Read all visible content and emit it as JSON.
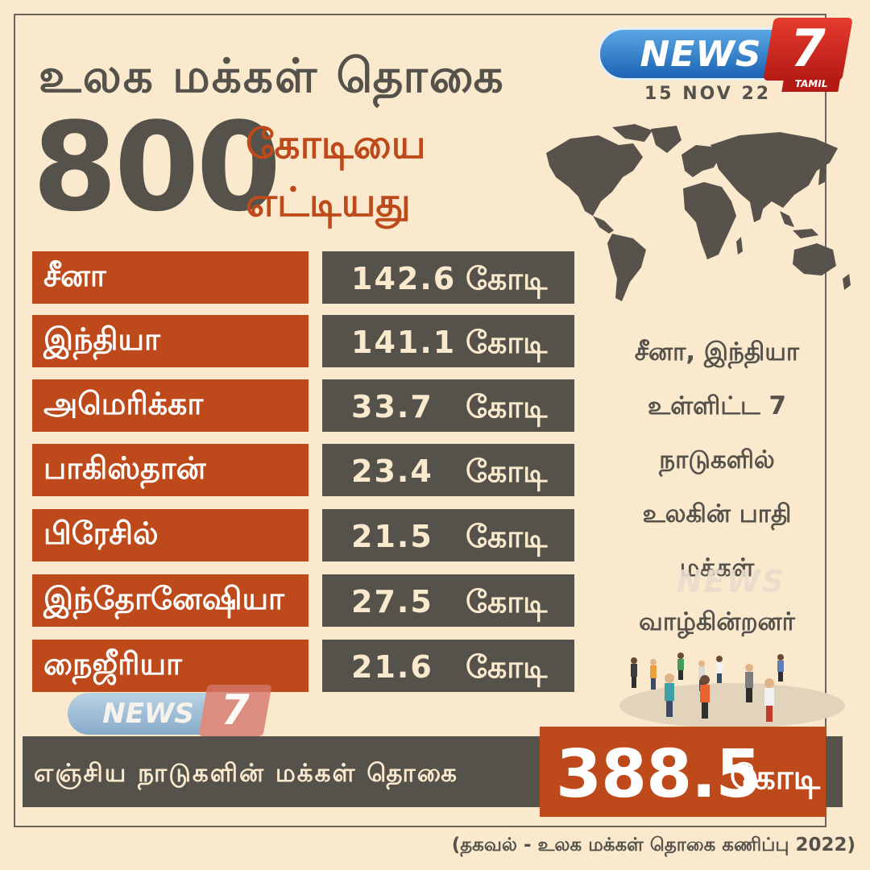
{
  "header": {
    "title": "உலக மக்கள் தொகை",
    "big_number": "800",
    "subtitle_line1": "கோடியை",
    "subtitle_line2": "எட்டியது"
  },
  "brand": {
    "name": "NEWS",
    "number": "7",
    "tag": "TAMIL"
  },
  "date": "15 NOV 22",
  "rows": [
    {
      "country": "சீனா",
      "value": "142.6",
      "unit": "கோடி"
    },
    {
      "country": "இந்தியா",
      "value": "141.1",
      "unit": "கோடி"
    },
    {
      "country": "அமெரிக்கா",
      "value": "33.7",
      "unit": "கோடி"
    },
    {
      "country": "பாகிஸ்தான்",
      "value": "23.4",
      "unit": "கோடி"
    },
    {
      "country": "பிரேசில்",
      "value": "21.5",
      "unit": "கோடி"
    },
    {
      "country": "இந்தோனேஷியா",
      "value": "27.5",
      "unit": "கோடி"
    },
    {
      "country": "நைஜீரியா",
      "value": "21.6",
      "unit": "கோடி"
    }
  ],
  "side_note": [
    "சீனா, இந்தியா",
    "உள்ளிட்ட 7",
    "நாடுகளில்",
    "உலகின் பாதி",
    "மக்கள்",
    "வாழ்கின்றனர்"
  ],
  "footer": {
    "label": "எஞ்சிய நாடுகளின் மக்கள் தொகை",
    "total": "388.5",
    "unit": "கோடி"
  },
  "source": "(தகவல் - உலக மக்கள் தொகை கணிப்பு 2022)",
  "colors": {
    "background": "#fbe9cd",
    "accent": "#be4a1c",
    "dark": "#55524c"
  },
  "icons": [
    "world-map-icon",
    "people-group-icon"
  ]
}
